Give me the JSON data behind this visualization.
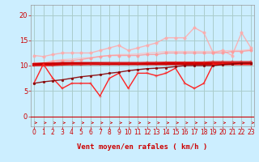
{
  "xlabel": "Vent moyen/en rafales ( km/h )",
  "background_color": "#cceeff",
  "grid_color": "#aacccc",
  "x_ticks": [
    0,
    1,
    2,
    3,
    4,
    5,
    6,
    7,
    8,
    9,
    10,
    11,
    12,
    13,
    14,
    15,
    16,
    17,
    18,
    19,
    20,
    21,
    22,
    23
  ],
  "ylim": [
    -2,
    22
  ],
  "xlim": [
    -0.3,
    23.3
  ],
  "yticks": [
    0,
    5,
    10,
    15,
    20
  ],
  "lines": [
    {
      "x": [
        0,
        1,
        2,
        3,
        4,
        5,
        6,
        7,
        8,
        9,
        10,
        11,
        12,
        13,
        14,
        15,
        16,
        17,
        18,
        19,
        20,
        21,
        22,
        23
      ],
      "y": [
        10.2,
        10.5,
        11.0,
        11.2,
        11.3,
        11.5,
        11.6,
        11.8,
        12.0,
        12.2,
        12.2,
        12.3,
        12.5,
        12.6,
        12.8,
        12.8,
        12.8,
        12.8,
        12.8,
        12.8,
        12.9,
        13.0,
        13.0,
        13.2
      ],
      "color": "#ffbbbb",
      "linewidth": 0.9,
      "marker": null,
      "markersize": 0,
      "alpha": 0.8
    },
    {
      "x": [
        0,
        1,
        2,
        3,
        4,
        5,
        6,
        7,
        8,
        9,
        10,
        11,
        12,
        13,
        14,
        15,
        16,
        17,
        18,
        19,
        20,
        21,
        22,
        23
      ],
      "y": [
        12.0,
        11.8,
        12.2,
        12.5,
        12.5,
        12.5,
        12.5,
        13.0,
        13.5,
        14.0,
        13.0,
        13.5,
        14.0,
        14.5,
        15.5,
        15.5,
        15.5,
        17.5,
        16.5,
        12.5,
        13.0,
        12.0,
        16.5,
        13.5
      ],
      "color": "#ffaaaa",
      "linewidth": 1.0,
      "marker": "o",
      "markersize": 2.5,
      "alpha": 0.85
    },
    {
      "x": [
        0,
        1,
        2,
        3,
        4,
        5,
        6,
        7,
        8,
        9,
        10,
        11,
        12,
        13,
        14,
        15,
        16,
        17,
        18,
        19,
        20,
        21,
        22,
        23
      ],
      "y": [
        10.5,
        10.5,
        10.8,
        11.0,
        11.0,
        11.2,
        11.5,
        11.8,
        12.0,
        12.0,
        12.0,
        12.0,
        12.2,
        12.2,
        12.5,
        12.5,
        12.5,
        12.5,
        12.5,
        12.5,
        12.5,
        12.8,
        12.8,
        13.0
      ],
      "color": "#ff9999",
      "linewidth": 1.0,
      "marker": "o",
      "markersize": 2.5,
      "alpha": 0.85
    },
    {
      "x": [
        0,
        1,
        2,
        3,
        4,
        5,
        6,
        7,
        8,
        9,
        10,
        11,
        12,
        13,
        14,
        15,
        16,
        17,
        18,
        19,
        20,
        21,
        22,
        23
      ],
      "y": [
        10.2,
        10.3,
        10.3,
        10.4,
        10.4,
        10.4,
        10.4,
        10.4,
        10.4,
        10.4,
        10.4,
        10.4,
        10.4,
        10.4,
        10.4,
        10.4,
        10.4,
        10.4,
        10.4,
        10.4,
        10.4,
        10.4,
        10.4,
        10.4
      ],
      "color": "#cc0000",
      "linewidth": 2.8,
      "marker": "s",
      "markersize": 2.0,
      "alpha": 1.0
    },
    {
      "x": [
        0,
        1,
        2,
        3,
        4,
        5,
        6,
        7,
        8,
        9,
        10,
        11,
        12,
        13,
        14,
        15,
        16,
        17,
        18,
        19,
        20,
        21,
        22,
        23
      ],
      "y": [
        10.0,
        10.0,
        10.0,
        10.1,
        10.2,
        10.2,
        10.3,
        10.4,
        10.5,
        10.5,
        10.5,
        10.5,
        10.6,
        10.6,
        10.7,
        10.7,
        10.7,
        10.7,
        10.7,
        10.8,
        10.8,
        10.8,
        10.8,
        10.8
      ],
      "color": "#dd2222",
      "linewidth": 1.0,
      "marker": "+",
      "markersize": 3.0,
      "alpha": 0.9
    },
    {
      "x": [
        0,
        1,
        2,
        3,
        4,
        5,
        6,
        7,
        8,
        9,
        10,
        11,
        12,
        13,
        14,
        15,
        16,
        17,
        18,
        19,
        20,
        21,
        22,
        23
      ],
      "y": [
        6.5,
        10.3,
        7.5,
        5.5,
        6.5,
        6.5,
        6.5,
        4.0,
        7.5,
        8.5,
        5.5,
        8.5,
        8.5,
        8.0,
        8.5,
        9.5,
        6.5,
        5.5,
        6.5,
        10.3,
        10.3,
        10.3,
        10.3,
        10.3
      ],
      "color": "#ff2222",
      "linewidth": 1.0,
      "marker": "+",
      "markersize": 3.5,
      "alpha": 1.0
    },
    {
      "x": [
        0,
        1,
        2,
        3,
        4,
        5,
        6,
        7,
        8,
        9,
        10,
        11,
        12,
        13,
        14,
        15,
        16,
        17,
        18,
        19,
        20,
        21,
        22,
        23
      ],
      "y": [
        6.5,
        6.8,
        7.0,
        7.2,
        7.5,
        7.8,
        8.0,
        8.2,
        8.5,
        8.7,
        9.0,
        9.2,
        9.4,
        9.5,
        9.6,
        9.8,
        10.0,
        10.0,
        10.0,
        10.0,
        10.2,
        10.3,
        10.5,
        10.5
      ],
      "color": "#880000",
      "linewidth": 1.0,
      "marker": "o",
      "markersize": 2.0,
      "alpha": 0.9
    }
  ],
  "tick_fontsize": 5.5,
  "xlabel_fontsize": 6.5,
  "tick_color": "#cc0000",
  "xlabel_color": "#cc0000",
  "arrow_color": "#cc0000"
}
